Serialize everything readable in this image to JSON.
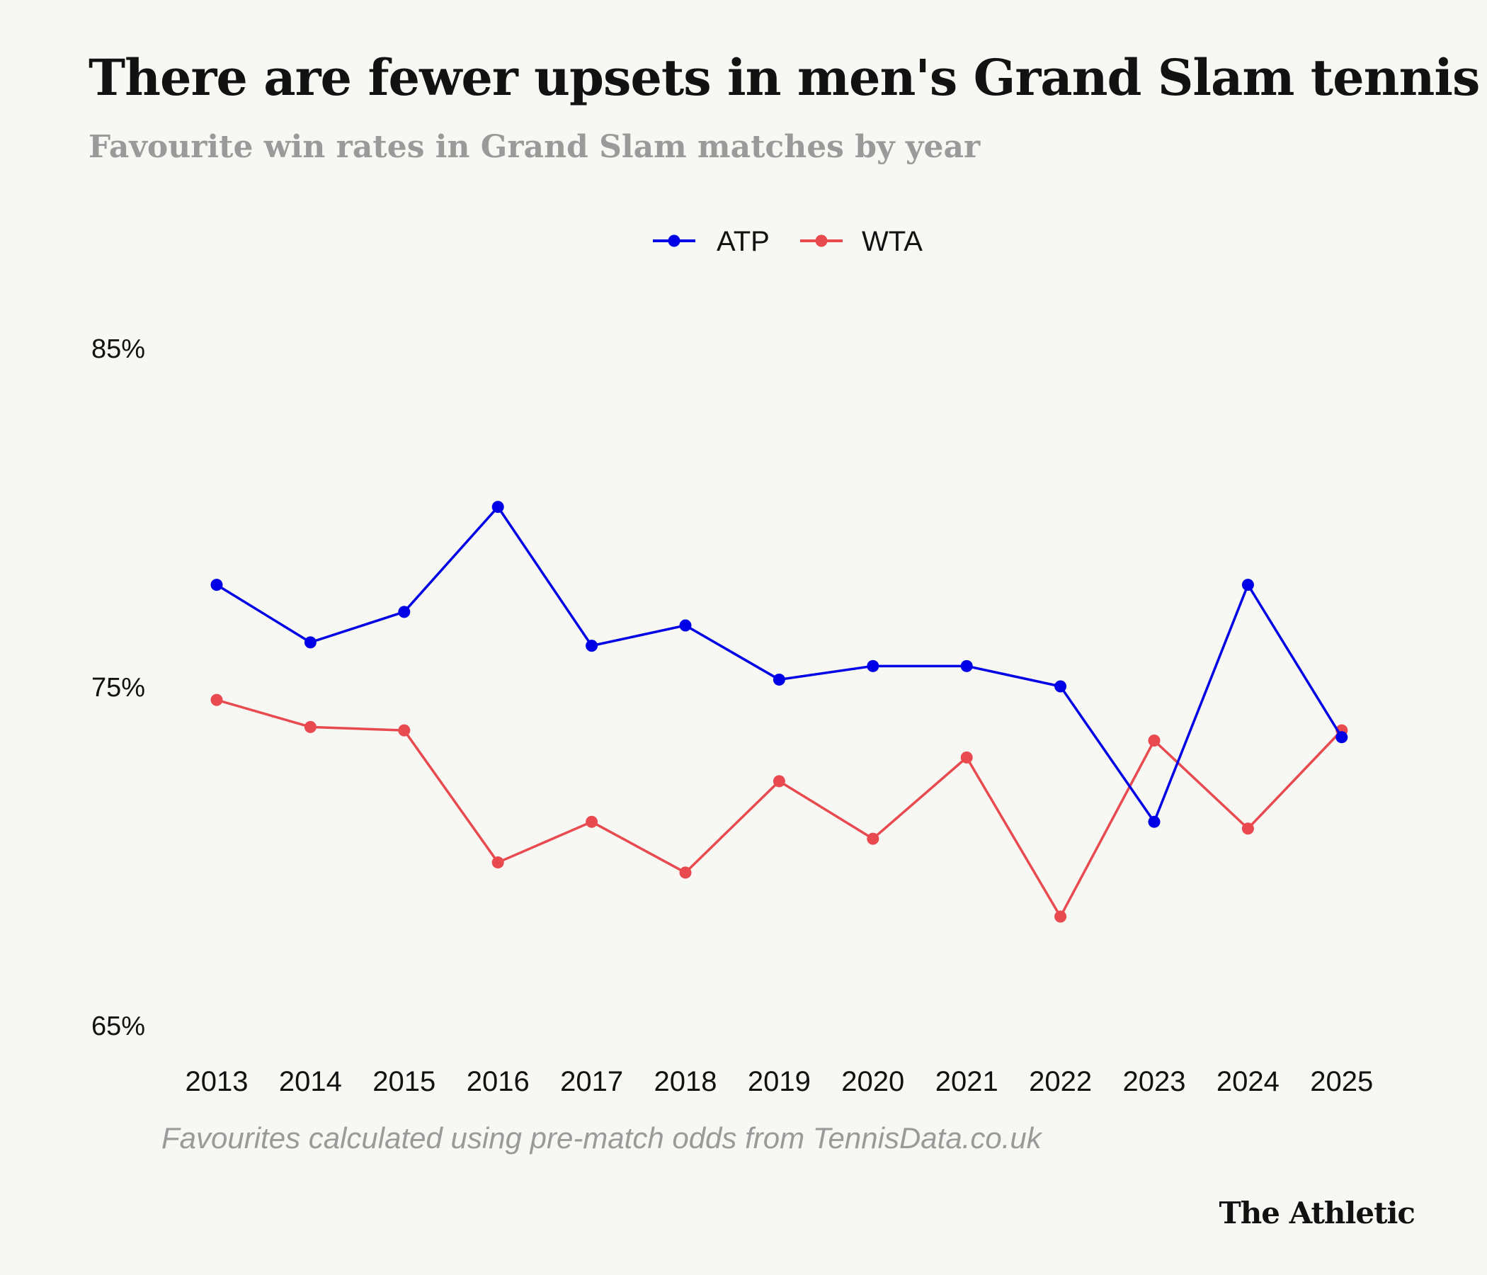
{
  "header": {
    "title": "There are fewer upsets in men's Grand Slam tennis",
    "subtitle": "Favourite win rates in Grand Slam matches by year"
  },
  "footer": {
    "note": "Favourites calculated using pre-match odds from TennisData.co.uk",
    "brand": "The Athletic"
  },
  "chart_data": {
    "type": "line",
    "title": "There are fewer upsets in men's Grand Slam tennis",
    "subtitle": "Favourite win rates in Grand Slam matches by year",
    "x": [
      "2013",
      "2014",
      "2015",
      "2016",
      "2017",
      "2018",
      "2019",
      "2020",
      "2021",
      "2022",
      "2023",
      "2024",
      "2025"
    ],
    "series": [
      {
        "name": "ATP",
        "color": "#0000e6",
        "values": [
          78.0,
          76.3,
          77.2,
          80.3,
          76.2,
          76.8,
          75.2,
          75.6,
          75.6,
          75.0,
          71.0,
          78.0,
          73.5
        ]
      },
      {
        "name": "WTA",
        "color": "#e84a4f",
        "values": [
          74.6,
          73.8,
          73.7,
          69.8,
          71.0,
          69.5,
          72.2,
          70.5,
          72.9,
          68.2,
          73.4,
          70.8,
          73.7
        ]
      }
    ],
    "y_ticks": [
      65,
      75,
      85
    ],
    "y_tick_labels": [
      "65%",
      "75%",
      "85%"
    ],
    "ylim": [
      65,
      85
    ],
    "xlabel": "",
    "ylabel": "",
    "grid": false,
    "legend": "top-center"
  }
}
